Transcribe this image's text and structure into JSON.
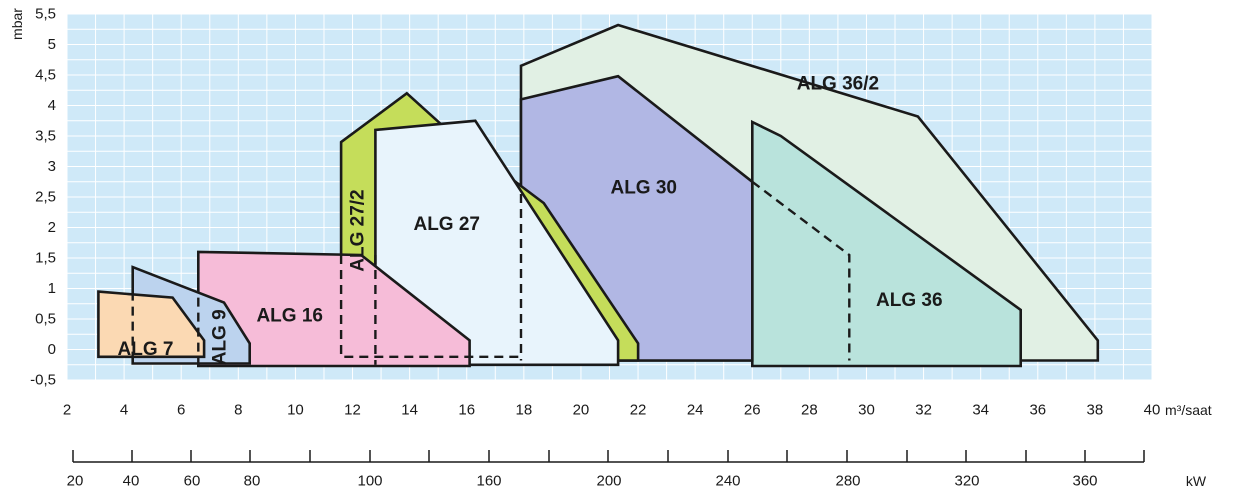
{
  "chart_data": {
    "type": "area",
    "x_unit": "m³/saat",
    "y_unit": "mbar",
    "x2_unit": "kW",
    "x_ticks": [
      "2",
      "4",
      "6",
      "8",
      "10",
      "12",
      "14",
      "16",
      "18",
      "20",
      "22",
      "24",
      "26",
      "28",
      "30",
      "32",
      "34",
      "36",
      "38",
      "40"
    ],
    "y_ticks": [
      "-0,5",
      "0",
      "0,5",
      "1",
      "1,5",
      "2",
      "2,5",
      "3",
      "3,5",
      "4",
      "4,5",
      "5",
      "5,5"
    ],
    "kw_ticks": [
      "20",
      "40",
      "60",
      "80",
      "100",
      "160",
      "200",
      "240",
      "280",
      "320",
      "360"
    ],
    "xlim": [
      2,
      40
    ],
    "ylim": [
      -0.5,
      5.5
    ],
    "grid": true,
    "colors": {
      "plot_bg": "#cfe9f8",
      "grid": "#ffffff",
      "outline": "#1a1a1a",
      "ALG 7": "#fbd9b3",
      "ALG 9": "#bcd3ee",
      "ALG 16": "#f6bcd8",
      "ALG 27/2": "#c5dd5a",
      "ALG 27": "#e8f4fc",
      "ALG 30": "#b1b7e4",
      "ALG 36/2": "#e1f0e4",
      "ALG 36": "#b9e3dc"
    },
    "regions": [
      {
        "name": "ALG 36/2",
        "label": "ALG 36/2",
        "points": [
          [
            17.9,
            4.65
          ],
          [
            21.3,
            5.32
          ],
          [
            31.8,
            3.82
          ],
          [
            38.1,
            0.15
          ],
          [
            38.1,
            -0.18
          ],
          [
            17.9,
            -0.18
          ]
        ]
      },
      {
        "name": "ALG 36",
        "label": "ALG 36",
        "points": [
          [
            26.0,
            3.73
          ],
          [
            27.0,
            3.5
          ],
          [
            35.4,
            0.65
          ],
          [
            35.4,
            -0.27
          ],
          [
            26.0,
            -0.27
          ]
        ]
      },
      {
        "name": "ALG 30",
        "label": "ALG 30",
        "points": [
          [
            17.9,
            4.1
          ],
          [
            21.3,
            4.48
          ],
          [
            26.0,
            2.75
          ],
          [
            26.0,
            -0.18
          ],
          [
            17.9,
            -0.18
          ]
        ]
      },
      {
        "name": "ALG 27/2",
        "label": "ALG 27/2",
        "points": [
          [
            11.6,
            3.4
          ],
          [
            13.9,
            4.2
          ],
          [
            15.2,
            3.65
          ],
          [
            17.9,
            2.68
          ],
          [
            18.7,
            2.4
          ],
          [
            22.0,
            0.1
          ],
          [
            22.0,
            -0.18
          ],
          [
            11.6,
            -0.18
          ]
        ]
      },
      {
        "name": "ALG 27",
        "label": "ALG 27",
        "points": [
          [
            12.8,
            3.6
          ],
          [
            16.3,
            3.75
          ],
          [
            21.3,
            0.15
          ],
          [
            21.3,
            -0.25
          ],
          [
            12.8,
            -0.25
          ]
        ]
      },
      {
        "name": "ALG 16",
        "label": "ALG 16",
        "points": [
          [
            6.6,
            1.6
          ],
          [
            12.3,
            1.55
          ],
          [
            16.1,
            0.15
          ],
          [
            16.1,
            -0.27
          ],
          [
            6.6,
            -0.27
          ]
        ]
      },
      {
        "name": "ALG 9",
        "label": "ALG 9",
        "points": [
          [
            4.3,
            1.35
          ],
          [
            7.5,
            0.77
          ],
          [
            8.4,
            0.1
          ],
          [
            8.4,
            -0.23
          ],
          [
            4.3,
            -0.23
          ]
        ]
      },
      {
        "name": "ALG 7",
        "label": "ALG 7",
        "points": [
          [
            3.1,
            0.95
          ],
          [
            5.7,
            0.85
          ],
          [
            6.8,
            0.15
          ],
          [
            6.8,
            -0.12
          ],
          [
            3.1,
            -0.12
          ]
        ]
      }
    ],
    "dashed_lines": [
      [
        [
          4.3,
          0.95
        ],
        [
          4.3,
          -0.23
        ]
      ],
      [
        [
          6.6,
          0.85
        ],
        [
          6.6,
          -0.27
        ]
      ],
      [
        [
          11.6,
          1.55
        ],
        [
          11.6,
          -0.12
        ],
        [
          17.9,
          -0.12
        ]
      ],
      [
        [
          12.8,
          1.55
        ],
        [
          12.8,
          -0.25
        ]
      ],
      [
        [
          17.9,
          2.55
        ],
        [
          17.9,
          -0.18
        ]
      ],
      [
        [
          26.0,
          2.75
        ],
        [
          29.4,
          1.55
        ],
        [
          29.4,
          -0.18
        ]
      ]
    ]
  }
}
